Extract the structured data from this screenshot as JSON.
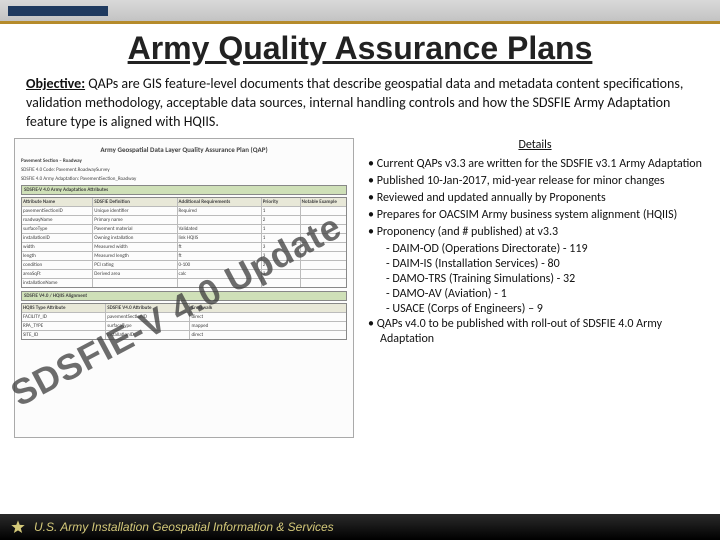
{
  "title": "Army Quality Assurance Plans",
  "objective": {
    "label": "Objective:",
    "text": " QAPs are GIS feature-level documents that describe geospatial data and metadata content specifications, validation methodology, acceptable data sources, internal handling controls and how the SDSFIE Army Adaptation feature type is aligned with HQIIS."
  },
  "details": {
    "heading": "Details",
    "items": [
      {
        "t": "b",
        "text": "Current QAPs v3.3 are written for the SDSFIE v3.1 Army Adaptation"
      },
      {
        "t": "b",
        "text": "Published 10-Jan-2017, mid-year release for minor changes"
      },
      {
        "t": "b",
        "text": "Reviewed and updated annually by Proponents"
      },
      {
        "t": "b",
        "text": "Prepares for OACSIM Army business system alignment (HQIIS)"
      },
      {
        "t": "b",
        "text": "Proponency (and # published) at v3.3"
      },
      {
        "t": "d",
        "text": "DAIM-OD (Operations Directorate) - 119"
      },
      {
        "t": "d",
        "text": "DAIM-IS (Installation Services) - 80"
      },
      {
        "t": "d",
        "text": "DAMO-TRS (Training Simulations) - 32"
      },
      {
        "t": "d",
        "text": "DAMO-AV (Aviation) - 1"
      },
      {
        "t": "d",
        "text": "USACE (Corps of Engineers) – 9"
      },
      {
        "t": "b",
        "text": "QAPs v4.0 to be published with roll-out of SDSFIE 4.0 Army Adaptation"
      }
    ]
  },
  "watermark": "SDSFIE-V 4.0 Update",
  "doc_preview": {
    "heading": "Army Geospatial Data Layer Quality Assurance Plan (QAP)",
    "subheading": "Pavement Section – Roadway",
    "code1": "SDSFIE 4.0 Code: Pavement.RoadwaySurvey",
    "code2": "SDSFIE 4.0 Army Adaptation: PavementSection_Roadway",
    "section1": "SDSFIE-V 4.0 Army Adaptation Attributes",
    "table1": {
      "head": [
        "Attribute Name",
        "SDSFIE Definition",
        "Additional Requirements",
        "Priority",
        "Notable Example"
      ],
      "rows": [
        [
          "pavementSectionID",
          "Unique identifier",
          "Required",
          "1",
          ""
        ],
        [
          "roadwayName",
          "Primary name",
          "",
          "2",
          ""
        ],
        [
          "surfaceType",
          "Pavement material",
          "Validated",
          "1",
          ""
        ],
        [
          "installationID",
          "Owning installation",
          "link HQIIS",
          "1",
          ""
        ],
        [
          "width",
          "Measured width",
          "ft",
          "3",
          ""
        ],
        [
          "length",
          "Measured length",
          "ft",
          "3",
          ""
        ],
        [
          "condition",
          "PCI rating",
          "0-100",
          "2",
          ""
        ],
        [
          "areaSqFt",
          "Derived area",
          "calc",
          "3",
          ""
        ],
        [
          "installationName",
          "",
          "",
          "",
          ""
        ]
      ]
    },
    "section2": "SDSFIE V4.0 / HQIIS Alignment",
    "table2": {
      "head": [
        "HQIIS Type Attribute",
        "SDSFIE V4.0 Attribute",
        "Crosswalk"
      ],
      "rows": [
        [
          "FACILITY_ID",
          "pavementSectionID",
          "direct"
        ],
        [
          "RPA_TYPE",
          "surfaceType",
          "mapped"
        ],
        [
          "SITE_ID",
          "installationID",
          "direct"
        ]
      ]
    }
  },
  "footer": {
    "text": "U.S. Army Installation Geospatial Information & Services"
  },
  "colors": {
    "accent_bar": "#b58b2b",
    "header_grad_top": "#d9d9d9",
    "header_grad_bot": "#c3c3c3",
    "nav_blue": "#1f3a5f",
    "section_green": "#cfe0b8",
    "table_header": "#e8e8d8",
    "footer_gold": "#d4c97a",
    "watermark": "rgba(60,60,60,0.75)"
  }
}
